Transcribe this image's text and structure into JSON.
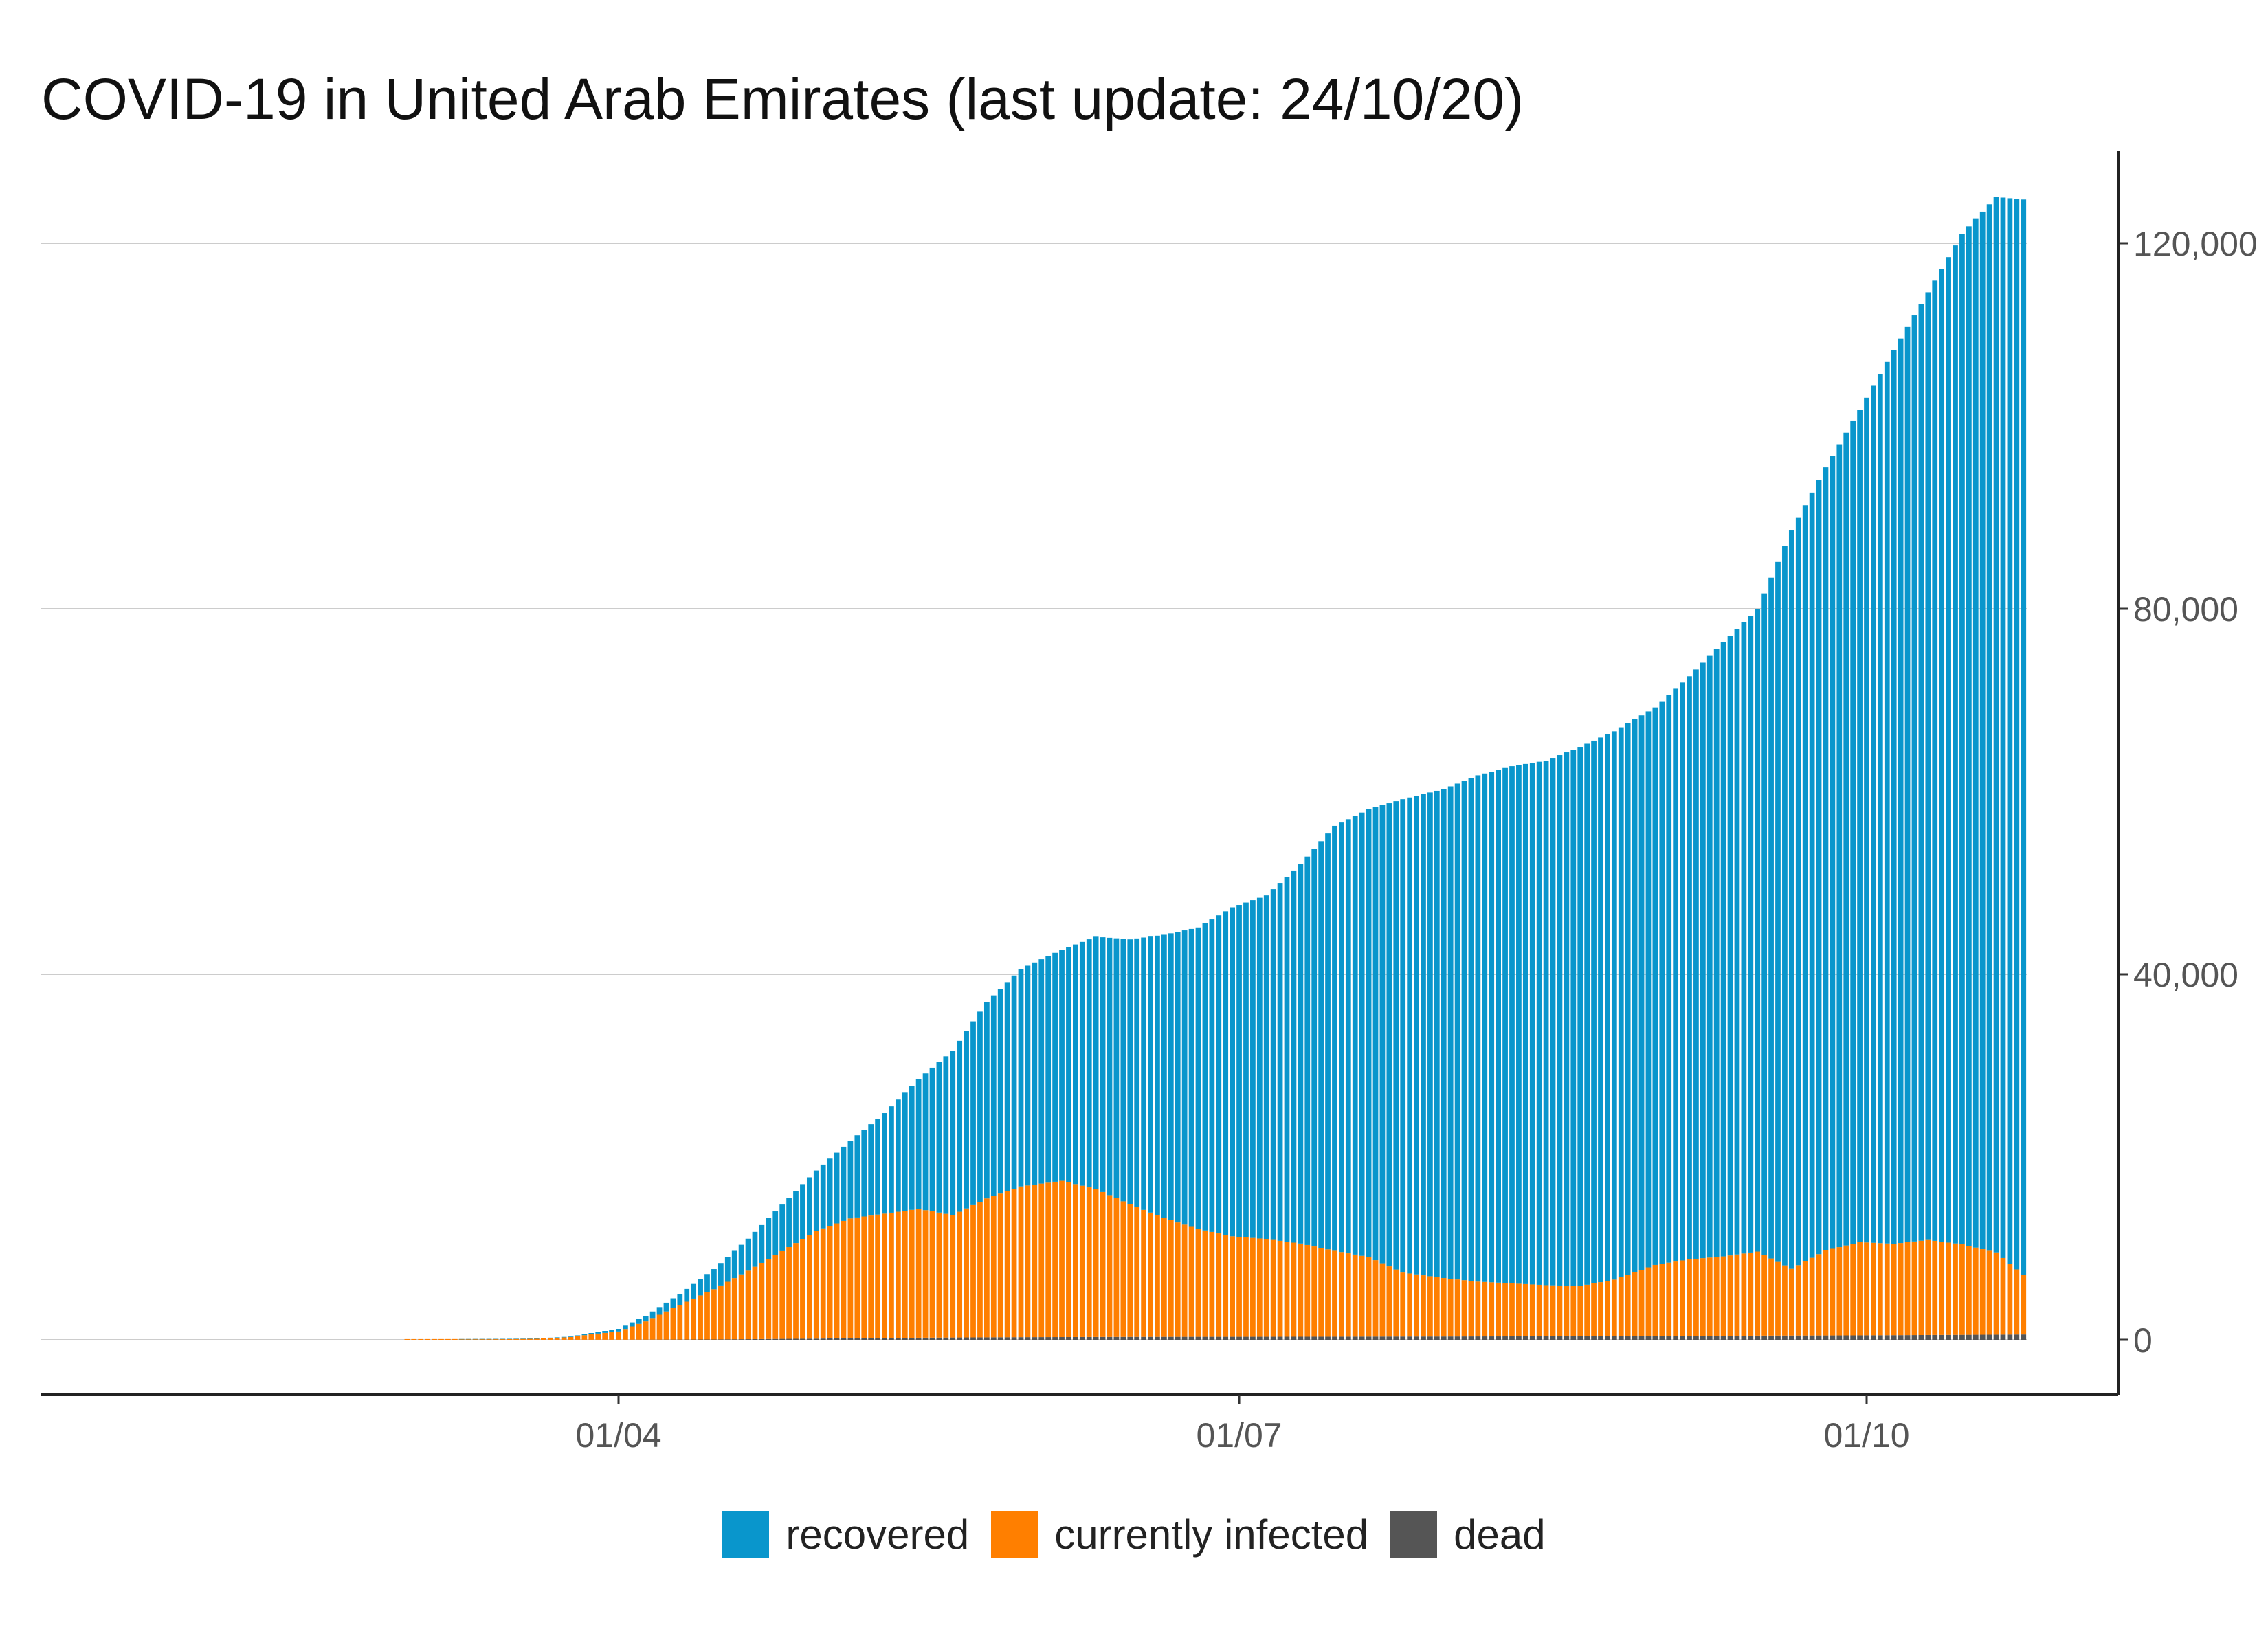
{
  "title": "COVID-19 in United Arab Emirates (last update: 24/10/20)",
  "legend": {
    "placement": "bottom",
    "items": [
      {
        "label": "recovered",
        "color": "#0996cc"
      },
      {
        "label": "currently infected",
        "color": "#ff7f00"
      },
      {
        "label": "dead",
        "color": "#555555"
      }
    ]
  },
  "chart_data": {
    "type": "bar",
    "stacked": true,
    "title": "COVID-19 in United Arab Emirates (last update: 24/10/20)",
    "xlabel": "",
    "ylabel": "",
    "x_axis": {
      "ticks": [
        "01/04",
        "01/07",
        "01/10"
      ]
    },
    "y_axis": {
      "position": "right",
      "ticks": [
        "0",
        "40,000",
        "80,000",
        "120,000"
      ],
      "ylim": [
        0,
        130000
      ]
    },
    "grid": {
      "horizontal": true,
      "vertical": false
    },
    "x": [
      "2020-03-01",
      "2020-03-08",
      "2020-03-15",
      "2020-03-20",
      "2020-03-25",
      "2020-03-28",
      "2020-04-01",
      "2020-04-05",
      "2020-04-10",
      "2020-04-15",
      "2020-04-20",
      "2020-04-25",
      "2020-04-30",
      "2020-05-05",
      "2020-05-10",
      "2020-05-15",
      "2020-05-20",
      "2020-05-25",
      "2020-05-30",
      "2020-06-05",
      "2020-06-10",
      "2020-06-15",
      "2020-06-20",
      "2020-06-25",
      "2020-06-30",
      "2020-07-05",
      "2020-07-10",
      "2020-07-15",
      "2020-07-20",
      "2020-07-25",
      "2020-07-31",
      "2020-08-05",
      "2020-08-10",
      "2020-08-15",
      "2020-08-20",
      "2020-08-25",
      "2020-08-31",
      "2020-09-05",
      "2020-09-10",
      "2020-09-15",
      "2020-09-20",
      "2020-09-25",
      "2020-09-30",
      "2020-10-05",
      "2020-10-10",
      "2020-10-15",
      "2020-10-20",
      "2020-10-24"
    ],
    "series": [
      {
        "name": "dead",
        "color": "#555555",
        "values": [
          0,
          0,
          0,
          2,
          5,
          10,
          12,
          20,
          30,
          41,
          70,
          105,
          128,
          185,
          210,
          230,
          253,
          273,
          290,
          300,
          310,
          320,
          325,
          330,
          331,
          334,
          339,
          345,
          354,
          360,
          363,
          372,
          375,
          380,
          385,
          390,
          399,
          410,
          430,
          460,
          470,
          480,
          493,
          510,
          530,
          550,
          570,
          590
        ]
      },
      {
        "name": "currently infected",
        "color": "#ff7f00",
        "values": [
          80,
          85,
          95,
          120,
          300,
          600,
          900,
          2000,
          3800,
          5500,
          7500,
          9600,
          11800,
          13100,
          13600,
          14100,
          13400,
          15200,
          16500,
          17100,
          16200,
          14500,
          13000,
          11800,
          11000,
          10700,
          10200,
          9400,
          8700,
          7000,
          6400,
          6000,
          5800,
          5600,
          5500,
          6200,
          7800,
          8400,
          8700,
          9200,
          7300,
          9300,
          10200,
          10000,
          10400,
          9900,
          9000,
          6500
        ]
      },
      {
        "name": "recovered",
        "color": "#0996cc",
        "values": [
          0,
          0,
          10,
          30,
          60,
          140,
          290,
          600,
          1200,
          2200,
          3500,
          5100,
          6600,
          8500,
          11000,
          14200,
          18000,
          21500,
          23800,
          25300,
          27600,
          29000,
          31000,
          33000,
          36000,
          37600,
          41500,
          46500,
          49000,
          51800,
          53500,
          55400,
          56600,
          57400,
          59000,
          60000,
          61000,
          63800,
          67200,
          70300,
          80800,
          85700,
          91100,
          97800,
          103700,
          110600,
          115500,
          117700
        ]
      }
    ]
  }
}
